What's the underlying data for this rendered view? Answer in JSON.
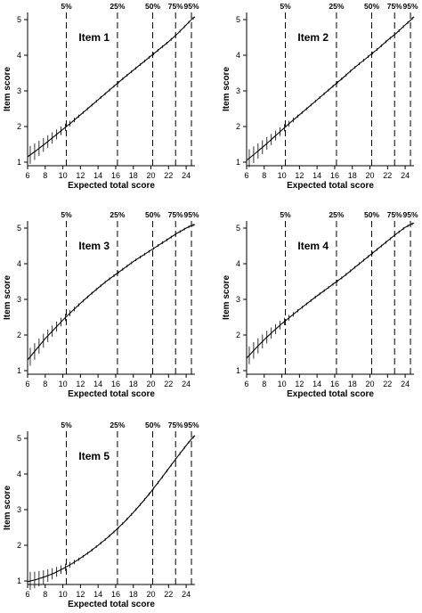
{
  "chart_data": [
    {
      "type": "line",
      "title": "Item 1",
      "xlabel": "Expected total score",
      "ylabel": "Item score",
      "xlim": [
        6,
        25
      ],
      "ylim": [
        0.9,
        5.2
      ],
      "xticks": [
        6,
        8,
        10,
        12,
        14,
        16,
        18,
        20,
        22,
        24
      ],
      "yticks": [
        1,
        2,
        3,
        4,
        5
      ],
      "percentiles": [
        {
          "label": "5%",
          "x": 10.4
        },
        {
          "label": "25%",
          "x": 16.2
        },
        {
          "label": "50%",
          "x": 20.2
        },
        {
          "label": "75%",
          "x": 22.8
        },
        {
          "label": "95%",
          "x": 24.6
        }
      ],
      "series": [
        {
          "x": [
            6.0,
            7.0,
            8.0,
            9.0,
            10.0,
            11.0,
            12.0,
            13.0,
            14.0,
            15.0,
            16.0,
            17.0,
            18.0,
            19.0,
            20.0,
            21.0,
            22.0,
            23.0,
            24.0,
            24.6,
            25.0
          ],
          "y": [
            1.15,
            1.33,
            1.52,
            1.72,
            1.92,
            2.12,
            2.33,
            2.54,
            2.75,
            2.96,
            3.17,
            3.38,
            3.58,
            3.78,
            3.98,
            4.18,
            4.38,
            4.6,
            4.85,
            5.0,
            5.08
          ]
        }
      ]
    },
    {
      "type": "line",
      "title": "Item 2",
      "xlabel": "Expected total score",
      "ylabel": "Item score",
      "xlim": [
        6,
        25
      ],
      "ylim": [
        0.9,
        5.2
      ],
      "xticks": [
        6,
        8,
        10,
        12,
        14,
        16,
        18,
        20,
        22,
        24
      ],
      "yticks": [
        1,
        2,
        3,
        4,
        5
      ],
      "percentiles": [
        {
          "label": "5%",
          "x": 10.4
        },
        {
          "label": "25%",
          "x": 16.2
        },
        {
          "label": "50%",
          "x": 20.2
        },
        {
          "label": "75%",
          "x": 22.8
        },
        {
          "label": "95%",
          "x": 24.6
        }
      ],
      "series": [
        {
          "x": [
            6.0,
            7.0,
            8.0,
            9.0,
            10.0,
            11.0,
            12.0,
            13.0,
            14.0,
            15.0,
            16.0,
            17.0,
            18.0,
            19.0,
            20.0,
            21.0,
            22.0,
            23.0,
            24.0,
            24.6,
            25.0
          ],
          "y": [
            1.05,
            1.25,
            1.46,
            1.68,
            1.9,
            2.12,
            2.33,
            2.54,
            2.75,
            2.96,
            3.17,
            3.38,
            3.6,
            3.8,
            4.0,
            4.2,
            4.42,
            4.62,
            4.85,
            4.98,
            5.08
          ]
        }
      ]
    },
    {
      "type": "line",
      "title": "Item 3",
      "xlabel": "Expected total score",
      "ylabel": "Item score",
      "xlim": [
        6,
        25
      ],
      "ylim": [
        0.9,
        5.2
      ],
      "xticks": [
        6,
        8,
        10,
        12,
        14,
        16,
        18,
        20,
        22,
        24
      ],
      "yticks": [
        1,
        2,
        3,
        4,
        5
      ],
      "percentiles": [
        {
          "label": "5%",
          "x": 10.4
        },
        {
          "label": "25%",
          "x": 16.2
        },
        {
          "label": "50%",
          "x": 20.2
        },
        {
          "label": "75%",
          "x": 22.8
        },
        {
          "label": "95%",
          "x": 24.6
        }
      ],
      "series": [
        {
          "x": [
            6.0,
            7.0,
            8.0,
            9.0,
            10.0,
            11.0,
            12.0,
            13.0,
            14.0,
            15.0,
            16.0,
            17.0,
            18.0,
            19.0,
            20.0,
            21.0,
            22.0,
            23.0,
            24.0,
            24.6,
            25.0
          ],
          "y": [
            1.3,
            1.6,
            1.9,
            2.16,
            2.42,
            2.66,
            2.89,
            3.11,
            3.32,
            3.52,
            3.7,
            3.88,
            4.06,
            4.22,
            4.38,
            4.54,
            4.7,
            4.86,
            5.0,
            5.07,
            5.1
          ]
        }
      ]
    },
    {
      "type": "line",
      "title": "Item 4",
      "xlabel": "Expected total score",
      "ylabel": "Item score",
      "xlim": [
        6,
        25
      ],
      "ylim": [
        0.9,
        5.2
      ],
      "xticks": [
        6,
        8,
        10,
        12,
        14,
        16,
        18,
        20,
        22,
        24
      ],
      "yticks": [
        1,
        2,
        3,
        4,
        5
      ],
      "percentiles": [
        {
          "label": "5%",
          "x": 10.4
        },
        {
          "label": "25%",
          "x": 16.2
        },
        {
          "label": "50%",
          "x": 20.2
        },
        {
          "label": "75%",
          "x": 22.8
        },
        {
          "label": "95%",
          "x": 24.6
        }
      ],
      "series": [
        {
          "x": [
            6.0,
            7.0,
            8.0,
            9.0,
            10.0,
            11.0,
            12.0,
            13.0,
            14.0,
            15.0,
            16.0,
            17.0,
            18.0,
            19.0,
            20.0,
            21.0,
            22.0,
            23.0,
            24.0,
            24.6,
            25.0
          ],
          "y": [
            1.35,
            1.62,
            1.87,
            2.1,
            2.32,
            2.52,
            2.72,
            2.91,
            3.1,
            3.28,
            3.46,
            3.64,
            3.84,
            4.04,
            4.24,
            4.44,
            4.64,
            4.84,
            5.02,
            5.1,
            5.14
          ]
        }
      ]
    },
    {
      "type": "line",
      "title": "Item 5",
      "xlabel": "Expected total score",
      "ylabel": "Item score",
      "xlim": [
        6,
        25
      ],
      "ylim": [
        0.9,
        5.2
      ],
      "xticks": [
        6,
        8,
        10,
        12,
        14,
        16,
        18,
        20,
        22,
        24
      ],
      "yticks": [
        1,
        2,
        3,
        4,
        5
      ],
      "percentiles": [
        {
          "label": "5%",
          "x": 10.4
        },
        {
          "label": "25%",
          "x": 16.2
        },
        {
          "label": "50%",
          "x": 20.2
        },
        {
          "label": "75%",
          "x": 22.8
        },
        {
          "label": "95%",
          "x": 24.6
        }
      ],
      "series": [
        {
          "x": [
            6.0,
            7.0,
            8.0,
            9.0,
            10.0,
            11.0,
            12.0,
            13.0,
            14.0,
            15.0,
            16.0,
            17.0,
            18.0,
            19.0,
            20.0,
            21.0,
            22.0,
            23.0,
            24.0,
            24.6,
            25.0
          ],
          "y": [
            0.98,
            1.04,
            1.12,
            1.22,
            1.34,
            1.48,
            1.64,
            1.81,
            2.0,
            2.2,
            2.42,
            2.66,
            2.92,
            3.2,
            3.5,
            3.82,
            4.15,
            4.48,
            4.8,
            4.98,
            5.08
          ]
        }
      ]
    }
  ]
}
